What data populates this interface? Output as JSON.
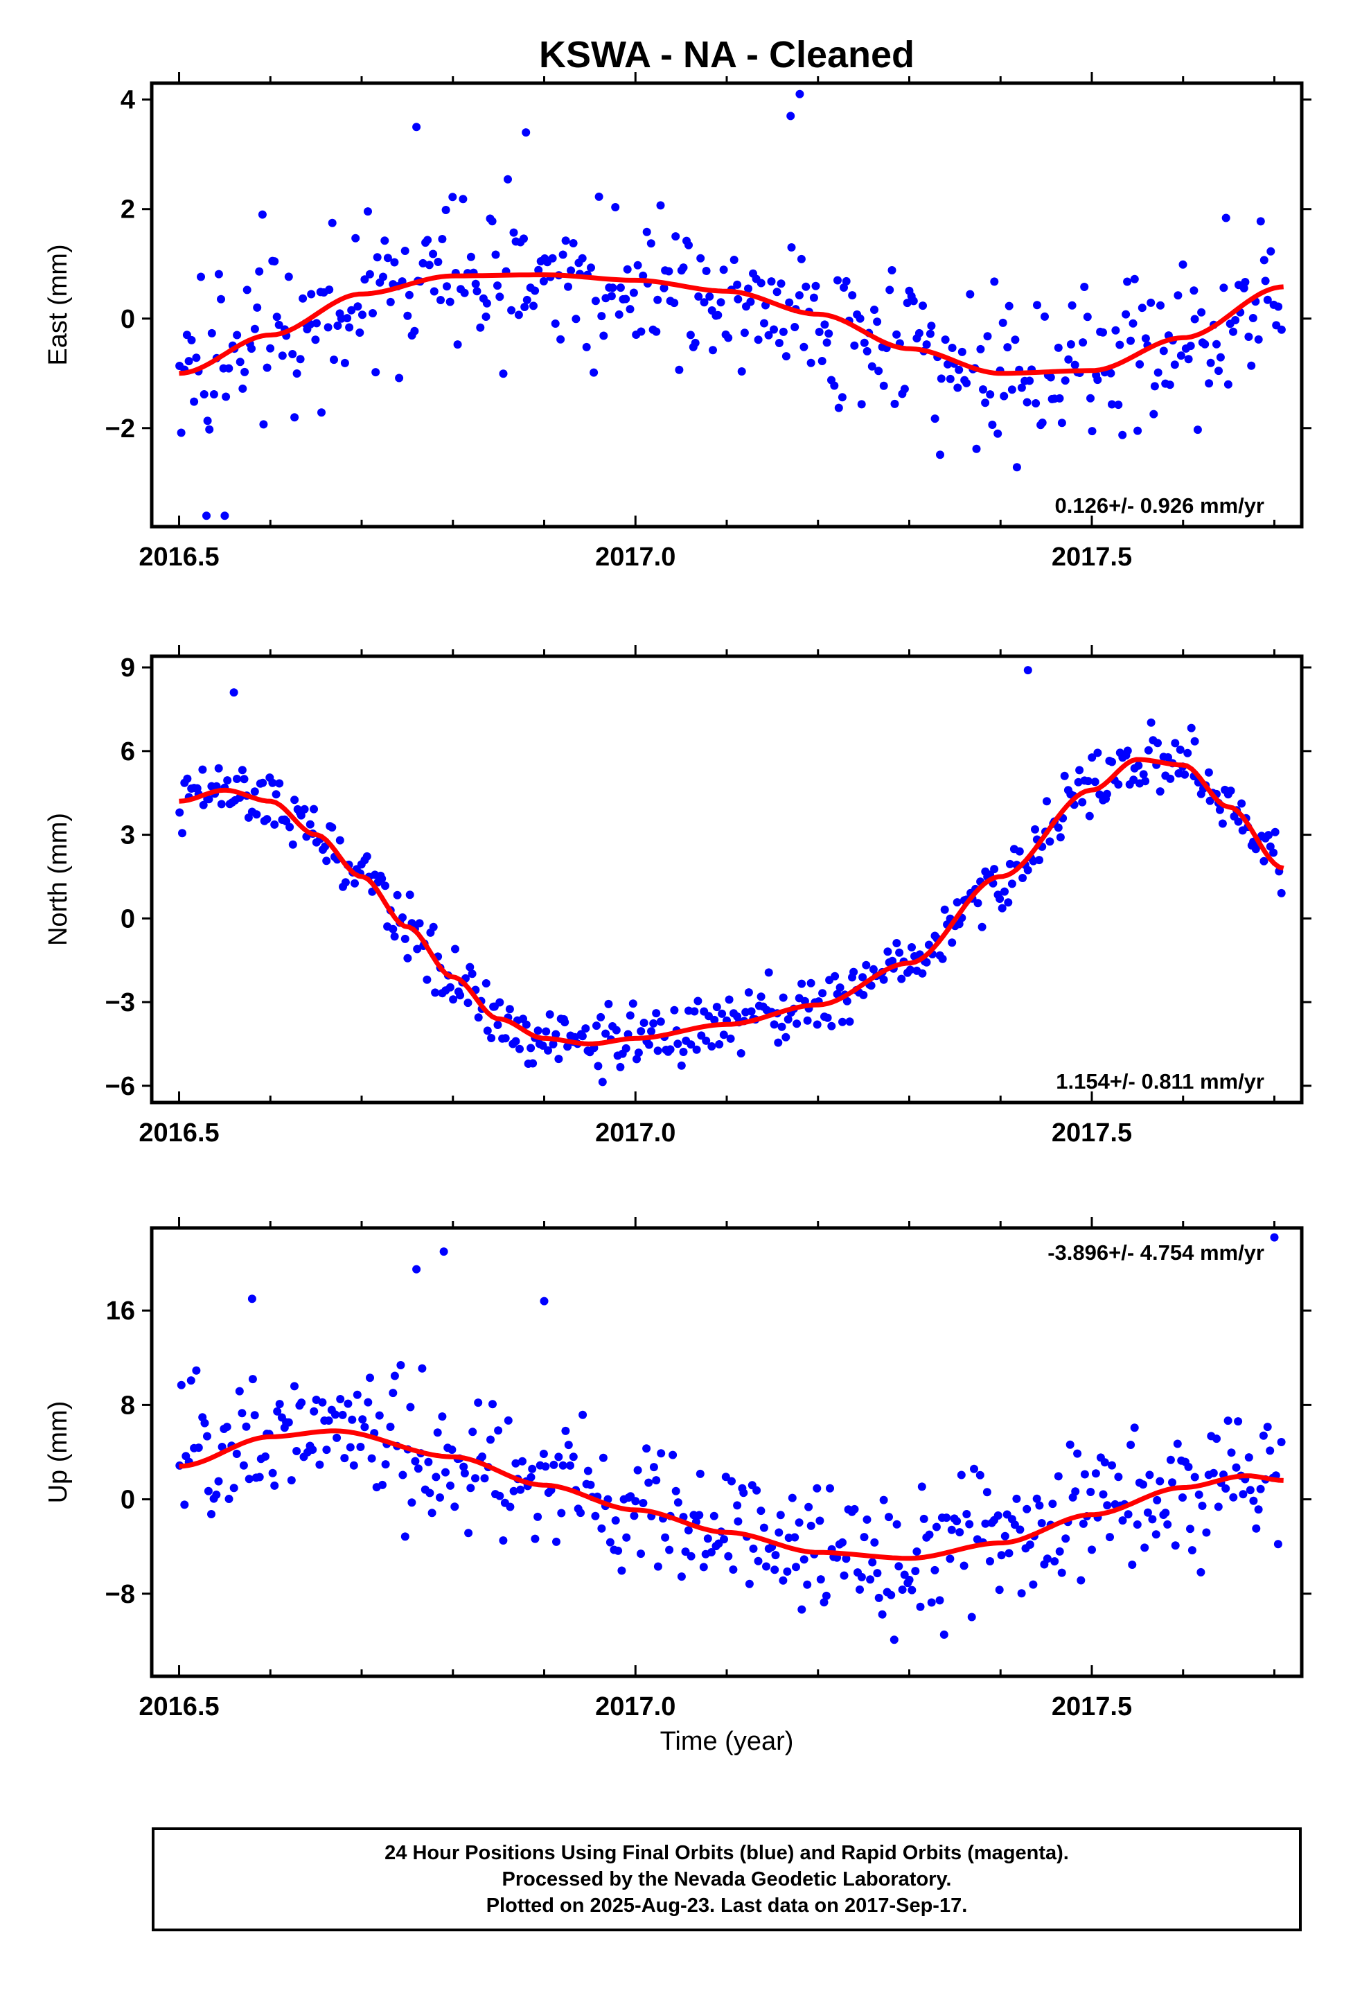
{
  "title": "KSWA  - NA - Cleaned",
  "xlabel": "Time (year)",
  "colors": {
    "dots": "#0000ff",
    "fit": "#ff0000",
    "frame": "#000000"
  },
  "footer": [
    "24 Hour Positions Using Final Orbits (blue) and Rapid Orbits (magenta).",
    "Processed by the Nevada Geodetic Laboratory.",
    "Plotted on 2025-Aug-23. Last data on 2017-Sep-17."
  ],
  "chart_data": [
    {
      "type": "scatter",
      "ylabel": "East (mm)",
      "rate_label": "0.126+/- 0.926 mm/yr",
      "xlim": [
        2016.47,
        2017.73
      ],
      "ylim": [
        -3.8,
        4.3
      ],
      "x_ticks": [
        2016.5,
        2017.0,
        2017.5
      ],
      "x_tick_labels": [
        "2016.5",
        "2017.0",
        "2017.5"
      ],
      "y_ticks": [
        -2,
        0,
        2,
        4
      ],
      "y_tick_labels": [
        "−2",
        "0",
        "2",
        "4"
      ],
      "grid": false,
      "fit_knots": {
        "x": [
          2016.5,
          2016.6,
          2016.7,
          2016.8,
          2016.9,
          2017.0,
          2017.1,
          2017.2,
          2017.3,
          2017.4,
          2017.5,
          2017.6,
          2017.71
        ],
        "y": [
          -1.0,
          -0.3,
          0.45,
          0.78,
          0.8,
          0.7,
          0.5,
          0.08,
          -0.55,
          -1.0,
          -0.95,
          -0.35,
          0.58
        ]
      },
      "scatter_sd": 1.05,
      "outliers": [
        [
          2016.53,
          -3.6
        ],
        [
          2016.55,
          -3.6
        ],
        [
          2017.18,
          4.1
        ],
        [
          2017.17,
          3.7
        ],
        [
          2016.76,
          3.5
        ],
        [
          2016.88,
          3.4
        ]
      ]
    },
    {
      "type": "scatter",
      "ylabel": "North (mm)",
      "rate_label": "1.154+/- 0.811 mm/yr",
      "xlim": [
        2016.47,
        2017.73
      ],
      "ylim": [
        -6.6,
        9.4
      ],
      "x_ticks": [
        2016.5,
        2017.0,
        2017.5
      ],
      "x_tick_labels": [
        "2016.5",
        "2017.0",
        "2017.5"
      ],
      "y_ticks": [
        -6,
        -3,
        0,
        3,
        6,
        9
      ],
      "y_tick_labels": [
        "−6",
        "−3",
        "0",
        "3",
        "6",
        "9"
      ],
      "grid": false,
      "fit_knots": {
        "x": [
          2016.5,
          2016.55,
          2016.6,
          2016.65,
          2016.7,
          2016.75,
          2016.8,
          2016.85,
          2016.9,
          2016.95,
          2017.0,
          2017.1,
          2017.2,
          2017.3,
          2017.4,
          2017.5,
          2017.55,
          2017.6,
          2017.65,
          2017.71
        ],
        "y": [
          4.2,
          4.6,
          4.2,
          3.0,
          1.5,
          -0.3,
          -2.1,
          -3.6,
          -4.3,
          -4.5,
          -4.3,
          -3.8,
          -3.1,
          -1.6,
          1.5,
          4.6,
          5.7,
          5.5,
          4.0,
          1.8
        ]
      },
      "scatter_sd": 0.75,
      "outliers": [
        [
          2017.43,
          8.9
        ],
        [
          2016.56,
          8.1
        ]
      ]
    },
    {
      "type": "scatter",
      "ylabel": "Up (mm)",
      "rate_label": "-3.896+/- 4.754 mm/yr",
      "xlim": [
        2016.47,
        2017.73
      ],
      "ylim": [
        -15,
        23
      ],
      "x_ticks": [
        2016.5,
        2017.0,
        2017.5
      ],
      "x_tick_labels": [
        "2016.5",
        "2017.0",
        "2017.5"
      ],
      "y_ticks": [
        -8,
        0,
        8,
        16
      ],
      "y_tick_labels": [
        "−8",
        "0",
        "8",
        "16"
      ],
      "grid": false,
      "fit_knots": {
        "x": [
          2016.5,
          2016.6,
          2016.67,
          2016.8,
          2016.9,
          2017.0,
          2017.1,
          2017.2,
          2017.3,
          2017.4,
          2017.5,
          2017.6,
          2017.67,
          2017.71
        ],
        "y": [
          2.8,
          5.3,
          5.8,
          3.6,
          1.2,
          -0.9,
          -2.8,
          -4.5,
          -5.0,
          -3.7,
          -1.3,
          1.0,
          2.0,
          1.6
        ]
      },
      "scatter_sd": 4.2,
      "outliers": [
        [
          2016.76,
          19.5
        ],
        [
          2016.79,
          21.0
        ],
        [
          2017.7,
          22.2
        ],
        [
          2016.58,
          17.0
        ],
        [
          2016.9,
          16.8
        ]
      ]
    }
  ]
}
